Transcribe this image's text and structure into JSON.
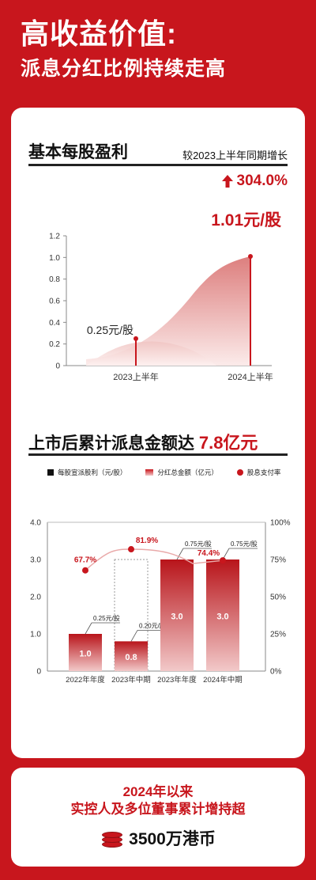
{
  "header": {
    "title_line1": "高收益价值:",
    "title_line2": "派息分红比例持续走高"
  },
  "eps_section": {
    "title": "基本每股盈利",
    "compare_label": "较2023上半年同期增长",
    "growth": "304.0%",
    "growth_arrow": "up-arrow-icon",
    "label_2024": "1.01元/股",
    "label_2023": "0.25元/股"
  },
  "dividend_section": {
    "title_prefix": "上市后累计派息金额达",
    "title_amount": "7.8亿元",
    "legend": {
      "dps": "每股宣派股利（元/股）",
      "total": "分红总金额（亿元）",
      "payout": "股息支付率"
    }
  },
  "bottom": {
    "line1": "2024年以来",
    "line2": "实控人及多位董事累计增持超",
    "line3": "3500万港币",
    "icon": "coin-stack-icon"
  },
  "colors": {
    "brand_red": "#c8161d",
    "background": "#c8161d",
    "card": "#ffffff"
  },
  "chart_data": [
    {
      "type": "area",
      "title": "基本每股盈利",
      "categories": [
        "2023上半年",
        "2024上半年"
      ],
      "values": [
        0.25,
        1.01
      ],
      "unit": "元/股",
      "ylim": [
        0,
        1.2
      ],
      "yticks": [
        "0",
        "0.2",
        "0.4",
        "0.6",
        "0.8",
        "1.0",
        "1.2"
      ],
      "grid": false
    },
    {
      "type": "bar",
      "title": "上市后累计派息金额达7.8亿元",
      "categories": [
        "2022年年度",
        "2023年中期",
        "2023年年度",
        "2024年中期"
      ],
      "series": [
        {
          "name": "分红总金额（亿元）",
          "values": [
            1.0,
            0.8,
            3.0,
            3.0
          ],
          "labels": [
            "1.0",
            "0.8",
            "3.0",
            "3.0"
          ]
        },
        {
          "name": "每股宣派股利（元/股）",
          "values": [
            0.25,
            0.2,
            0.75,
            0.75
          ],
          "labels": [
            "0.25元/股",
            "0.20元/股",
            "0.75元/股",
            "0.75元/股"
          ]
        },
        {
          "name": "股息支付率",
          "values": [
            67.7,
            81.9,
            74.4,
            74.4
          ],
          "labels": [
            "67.7%",
            "81.9%",
            "74.4%",
            ""
          ]
        }
      ],
      "ylim": [
        0,
        4.0
      ],
      "yticks": [
        "0",
        "1.0",
        "2.0",
        "3.0",
        "4.0"
      ],
      "y2lim": [
        0,
        100
      ],
      "y2ticks": [
        "0%",
        "25%",
        "50%",
        "75%",
        "100%"
      ],
      "legend": "top"
    }
  ]
}
